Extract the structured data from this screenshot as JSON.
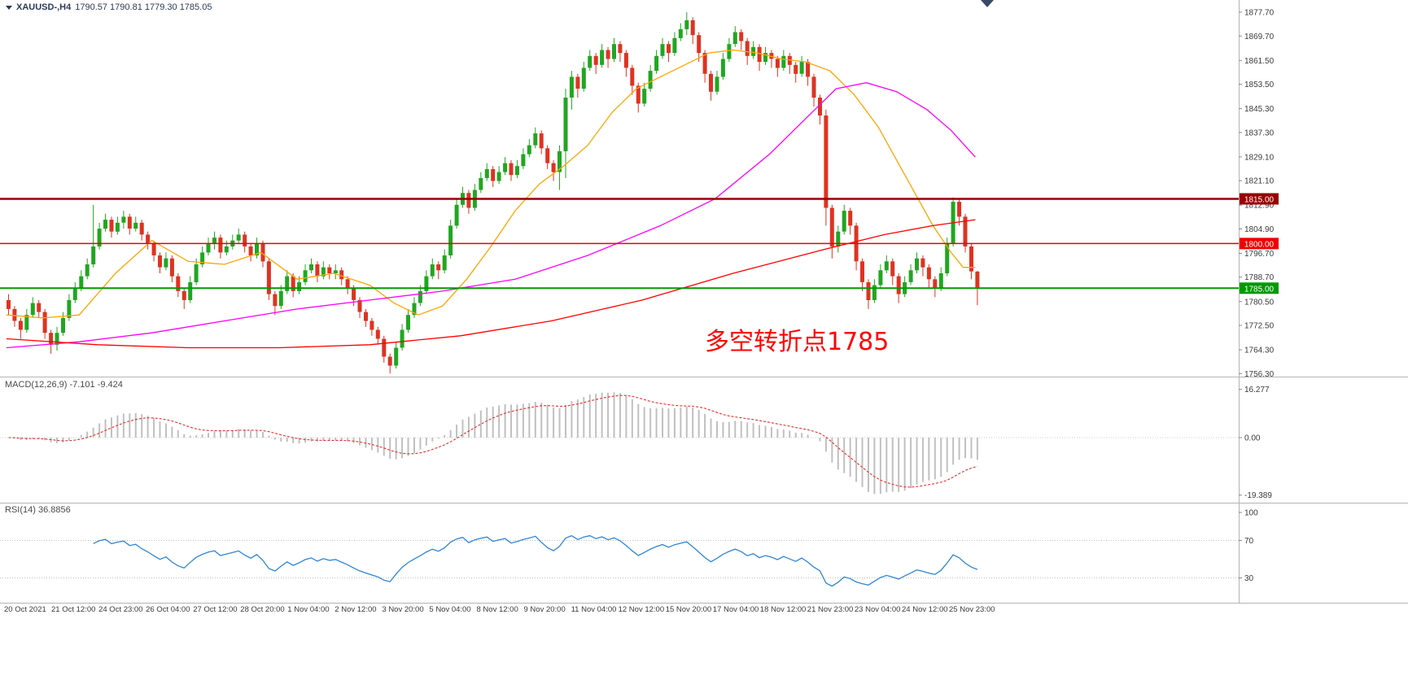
{
  "chart_data": {
    "type": "candlestick",
    "title": "XAUUSD-,H4",
    "ohlc_display": "1790.57 1790.81 1779.30 1785.05",
    "timeframe": "H4",
    "price_axis": {
      "ticks": [
        "1877.70",
        "1869.70",
        "1861.50",
        "1853.50",
        "1845.30",
        "1837.30",
        "1829.10",
        "1821.10",
        "1812.90",
        "1804.90",
        "1796.70",
        "1788.70",
        "1780.50",
        "1772.50",
        "1764.30",
        "1756.30"
      ]
    },
    "time_axis": {
      "labels": [
        "20 Oct 2021",
        "21 Oct 12:00",
        "24 Oct 23:00",
        "26 Oct 04:00",
        "27 Oct 12:00",
        "28 Oct 20:00",
        "1 Nov 04:00",
        "2 Nov 12:00",
        "3 Nov 20:00",
        "5 Nov 04:00",
        "8 Nov 12:00",
        "9 Nov 20:00",
        "11 Nov 04:00",
        "12 Nov 12:00",
        "15 Nov 20:00",
        "17 Nov 04:00",
        "18 Nov 12:00",
        "21 Nov 23:00",
        "23 Nov 04:00",
        "24 Nov 12:00",
        "25 Nov 23:00"
      ]
    },
    "hlines": [
      {
        "price": 1815.0,
        "label": "1815.00",
        "color": "#990000",
        "width": 2.5
      },
      {
        "price": 1800.0,
        "label": "1800.00",
        "color": "#ee0000",
        "width": 1.5
      },
      {
        "price": 1785.0,
        "label": "1785.00",
        "color": "#009900",
        "width": 2
      }
    ],
    "annotation": {
      "text": "多空转折点1785",
      "color": "#ff0000"
    },
    "colors": {
      "bull": "#21a621",
      "bear": "#dd3322",
      "ma_fast": "#ffa500",
      "ma_mid": "#ff00ff",
      "ma_slow": "#ff0000",
      "macd_hist": "#c0c0c0",
      "macd_signal": "#e03030",
      "rsi": "#2f86d4",
      "axis_text": "#3a3a3a",
      "separator": "#b4b4b4"
    },
    "candles": [
      [
        1781,
        1783,
        1776,
        1778
      ],
      [
        1778,
        1779,
        1772,
        1774
      ],
      [
        1774,
        1775,
        1768,
        1771
      ],
      [
        1771,
        1778,
        1770,
        1776
      ],
      [
        1776,
        1782,
        1775,
        1780
      ],
      [
        1780,
        1781,
        1775,
        1777
      ],
      [
        1777,
        1778,
        1768,
        1770
      ],
      [
        1770,
        1771,
        1763,
        1766
      ],
      [
        1766,
        1772,
        1764,
        1770
      ],
      [
        1770,
        1777,
        1769,
        1775
      ],
      [
        1775,
        1783,
        1774,
        1781
      ],
      [
        1781,
        1787,
        1780,
        1785
      ],
      [
        1785,
        1791,
        1784,
        1789
      ],
      [
        1789,
        1795,
        1788,
        1793
      ],
      [
        1793,
        1813,
        1792,
        1799
      ],
      [
        1799,
        1807,
        1798,
        1805
      ],
      [
        1805,
        1810,
        1804,
        1808
      ],
      [
        1808,
        1809,
        1802,
        1804
      ],
      [
        1804,
        1809,
        1803,
        1807
      ],
      [
        1807,
        1811,
        1805,
        1809
      ],
      [
        1809,
        1810,
        1803,
        1805
      ],
      [
        1805,
        1809,
        1804,
        1807
      ],
      [
        1807,
        1808,
        1801,
        1803
      ],
      [
        1803,
        1804,
        1798,
        1800
      ],
      [
        1800,
        1801,
        1794,
        1796
      ],
      [
        1796,
        1797,
        1790,
        1792
      ],
      [
        1792,
        1797,
        1791,
        1795
      ],
      [
        1795,
        1796,
        1787,
        1789
      ],
      [
        1789,
        1790,
        1782,
        1784
      ],
      [
        1784,
        1785,
        1778,
        1781
      ],
      [
        1781,
        1789,
        1780,
        1787
      ],
      [
        1787,
        1795,
        1786,
        1793
      ],
      [
        1793,
        1799,
        1792,
        1797
      ],
      [
        1797,
        1802,
        1796,
        1800
      ],
      [
        1800,
        1804,
        1798,
        1802
      ],
      [
        1802,
        1803,
        1795,
        1797
      ],
      [
        1797,
        1801,
        1796,
        1799
      ],
      [
        1799,
        1803,
        1798,
        1801
      ],
      [
        1801,
        1805,
        1800,
        1803
      ],
      [
        1803,
        1804,
        1797,
        1799
      ],
      [
        1799,
        1800,
        1794,
        1796
      ],
      [
        1796,
        1802,
        1795,
        1800
      ],
      [
        1800,
        1801,
        1792,
        1794
      ],
      [
        1794,
        1795,
        1781,
        1783
      ],
      [
        1783,
        1784,
        1776,
        1779
      ],
      [
        1779,
        1786,
        1778,
        1784
      ],
      [
        1784,
        1791,
        1783,
        1789
      ],
      [
        1789,
        1790,
        1782,
        1784
      ],
      [
        1784,
        1789,
        1783,
        1787
      ],
      [
        1787,
        1793,
        1786,
        1791
      ],
      [
        1791,
        1795,
        1790,
        1793
      ],
      [
        1793,
        1794,
        1787,
        1789
      ],
      [
        1789,
        1794,
        1788,
        1792
      ],
      [
        1792,
        1793,
        1788,
        1790
      ],
      [
        1790,
        1793,
        1788,
        1791
      ],
      [
        1791,
        1792,
        1786,
        1788
      ],
      [
        1788,
        1789,
        1783,
        1785
      ],
      [
        1785,
        1786,
        1779,
        1781
      ],
      [
        1781,
        1782,
        1775,
        1777
      ],
      [
        1777,
        1778,
        1772,
        1774
      ],
      [
        1774,
        1775,
        1769,
        1771
      ],
      [
        1771,
        1772,
        1766,
        1768
      ],
      [
        1768,
        1769,
        1760,
        1762
      ],
      [
        1762,
        1763,
        1756.3,
        1759
      ],
      [
        1759,
        1767,
        1758,
        1765
      ],
      [
        1765,
        1773,
        1764,
        1771
      ],
      [
        1771,
        1778,
        1770,
        1776
      ],
      [
        1776,
        1782,
        1775,
        1780
      ],
      [
        1780,
        1786,
        1779,
        1784
      ],
      [
        1784,
        1791,
        1783,
        1789
      ],
      [
        1789,
        1795,
        1788,
        1793
      ],
      [
        1793,
        1794,
        1788,
        1791
      ],
      [
        1791,
        1798,
        1790,
        1796
      ],
      [
        1796,
        1808,
        1795,
        1806
      ],
      [
        1806,
        1815,
        1805,
        1813
      ],
      [
        1813,
        1819,
        1812,
        1817
      ],
      [
        1817,
        1818,
        1810,
        1812
      ],
      [
        1812,
        1820,
        1811,
        1818
      ],
      [
        1818,
        1824,
        1817,
        1822
      ],
      [
        1822,
        1827,
        1821,
        1825
      ],
      [
        1825,
        1826,
        1819,
        1821
      ],
      [
        1821,
        1826,
        1820,
        1824
      ],
      [
        1824,
        1829,
        1823,
        1827
      ],
      [
        1827,
        1828,
        1821,
        1823
      ],
      [
        1823,
        1828,
        1822,
        1826
      ],
      [
        1826,
        1832,
        1825,
        1830
      ],
      [
        1830,
        1835,
        1829,
        1833
      ],
      [
        1833,
        1839,
        1832,
        1837
      ],
      [
        1837,
        1838,
        1830,
        1832
      ],
      [
        1832,
        1833,
        1825,
        1827
      ],
      [
        1827,
        1828,
        1821,
        1824
      ],
      [
        1824,
        1833,
        1818,
        1831
      ],
      [
        1831,
        1852,
        1822,
        1849
      ],
      [
        1849,
        1858,
        1845,
        1856
      ],
      [
        1856,
        1857,
        1849,
        1852
      ],
      [
        1852,
        1861,
        1851,
        1859
      ],
      [
        1859,
        1865,
        1858,
        1863
      ],
      [
        1863,
        1864,
        1857,
        1860
      ],
      [
        1860,
        1867,
        1859,
        1865
      ],
      [
        1865,
        1866,
        1859,
        1862
      ],
      [
        1862,
        1869,
        1861,
        1867
      ],
      [
        1867,
        1868,
        1861,
        1864
      ],
      [
        1864,
        1865,
        1856,
        1859
      ],
      [
        1859,
        1860,
        1850,
        1853
      ],
      [
        1853,
        1854,
        1844,
        1847
      ],
      [
        1847,
        1854,
        1846,
        1852
      ],
      [
        1852,
        1860,
        1851,
        1858
      ],
      [
        1858,
        1865,
        1857,
        1863
      ],
      [
        1863,
        1869,
        1862,
        1867
      ],
      [
        1867,
        1868,
        1861,
        1864
      ],
      [
        1864,
        1871,
        1863,
        1869
      ],
      [
        1869,
        1874,
        1868,
        1872
      ],
      [
        1872,
        1877.7,
        1870,
        1875
      ],
      [
        1875,
        1876,
        1867,
        1870
      ],
      [
        1870,
        1871,
        1861,
        1864
      ],
      [
        1864,
        1865,
        1854,
        1857
      ],
      [
        1857,
        1858,
        1848,
        1851
      ],
      [
        1851,
        1858,
        1850,
        1856
      ],
      [
        1856,
        1864,
        1855,
        1862
      ],
      [
        1862,
        1869,
        1861,
        1867
      ],
      [
        1867,
        1873,
        1866,
        1871
      ],
      [
        1871,
        1872,
        1865,
        1868
      ],
      [
        1868,
        1869,
        1860,
        1863
      ],
      [
        1863,
        1868,
        1862,
        1866
      ],
      [
        1866,
        1867,
        1858,
        1861
      ],
      [
        1861,
        1866,
        1860,
        1864
      ],
      [
        1864,
        1865,
        1859,
        1862
      ],
      [
        1862,
        1863,
        1856,
        1859
      ],
      [
        1859,
        1865,
        1858,
        1863
      ],
      [
        1863,
        1864,
        1857,
        1860
      ],
      [
        1860,
        1861,
        1854,
        1857
      ],
      [
        1857,
        1863,
        1856,
        1861
      ],
      [
        1861,
        1862,
        1853,
        1856
      ],
      [
        1856,
        1857,
        1846,
        1849
      ],
      [
        1849,
        1850,
        1840,
        1843
      ],
      [
        1843,
        1845,
        1806,
        1812
      ],
      [
        1812,
        1813,
        1795,
        1799
      ],
      [
        1799,
        1806,
        1797,
        1804
      ],
      [
        1804,
        1813,
        1803,
        1811
      ],
      [
        1811,
        1812,
        1803,
        1806
      ],
      [
        1806,
        1807,
        1791,
        1794
      ],
      [
        1794,
        1795,
        1784,
        1787
      ],
      [
        1787,
        1788,
        1778,
        1781
      ],
      [
        1781,
        1788,
        1780,
        1786
      ],
      [
        1786,
        1793,
        1785,
        1791
      ],
      [
        1791,
        1796,
        1790,
        1794
      ],
      [
        1794,
        1795,
        1786,
        1789
      ],
      [
        1789,
        1790,
        1780,
        1783
      ],
      [
        1783,
        1789,
        1782,
        1787
      ],
      [
        1787,
        1793,
        1786,
        1791
      ],
      [
        1791,
        1797,
        1790,
        1795
      ],
      [
        1795,
        1796,
        1789,
        1792
      ],
      [
        1792,
        1793,
        1785,
        1788
      ],
      [
        1788,
        1789,
        1782,
        1785
      ],
      [
        1785,
        1792,
        1784,
        1790
      ],
      [
        1790,
        1802,
        1789,
        1800
      ],
      [
        1800,
        1815.5,
        1799,
        1814
      ],
      [
        1814,
        1815,
        1806,
        1809
      ],
      [
        1809,
        1810,
        1797,
        1799
      ],
      [
        1799,
        1800,
        1788,
        1790.6
      ],
      [
        1790.57,
        1790.81,
        1779.3,
        1785.05
      ]
    ],
    "ma_lines": [
      {
        "name": "ma-fast-orange",
        "color": "#ffa500",
        "points": [
          [
            0,
            1776
          ],
          [
            6,
            1775
          ],
          [
            12,
            1776
          ],
          [
            18,
            1790
          ],
          [
            24,
            1801
          ],
          [
            30,
            1794
          ],
          [
            36,
            1793
          ],
          [
            42,
            1797
          ],
          [
            48,
            1788
          ],
          [
            54,
            1790
          ],
          [
            60,
            1786
          ],
          [
            64,
            1780
          ],
          [
            68,
            1776
          ],
          [
            72,
            1779
          ],
          [
            76,
            1788
          ],
          [
            80,
            1799
          ],
          [
            84,
            1811
          ],
          [
            88,
            1820
          ],
          [
            92,
            1826
          ],
          [
            96,
            1833
          ],
          [
            100,
            1844
          ],
          [
            104,
            1852
          ],
          [
            108,
            1856
          ],
          [
            112,
            1860
          ],
          [
            116,
            1864
          ],
          [
            120,
            1865
          ],
          [
            124,
            1864
          ],
          [
            128,
            1862
          ],
          [
            132,
            1861
          ],
          [
            136,
            1858
          ],
          [
            140,
            1850
          ],
          [
            144,
            1839
          ],
          [
            147,
            1828
          ],
          [
            150,
            1817
          ],
          [
            153,
            1806
          ],
          [
            156,
            1797
          ],
          [
            158,
            1792
          ],
          [
            160,
            1792
          ]
        ]
      },
      {
        "name": "ma-mid-magenta",
        "color": "#ff00ff",
        "points": [
          [
            0,
            1765
          ],
          [
            12,
            1767
          ],
          [
            24,
            1770
          ],
          [
            36,
            1774
          ],
          [
            48,
            1778
          ],
          [
            60,
            1781
          ],
          [
            72,
            1784
          ],
          [
            84,
            1788
          ],
          [
            96,
            1796
          ],
          [
            108,
            1806
          ],
          [
            117,
            1815
          ],
          [
            126,
            1830
          ],
          [
            132,
            1842
          ],
          [
            137,
            1852
          ],
          [
            142,
            1854
          ],
          [
            147,
            1851
          ],
          [
            152,
            1845
          ],
          [
            156,
            1838
          ],
          [
            160,
            1829
          ]
        ]
      },
      {
        "name": "ma-slow-red",
        "color": "#ff0000",
        "points": [
          [
            0,
            1768
          ],
          [
            15,
            1766
          ],
          [
            30,
            1765
          ],
          [
            45,
            1765
          ],
          [
            60,
            1766
          ],
          [
            75,
            1769
          ],
          [
            90,
            1774
          ],
          [
            105,
            1781
          ],
          [
            120,
            1790
          ],
          [
            135,
            1798
          ],
          [
            145,
            1803
          ],
          [
            153,
            1806
          ],
          [
            160,
            1808
          ]
        ]
      }
    ],
    "macd": {
      "label": "MACD(12,26,9) -7.101 -9.424",
      "fast": 12,
      "slow": 26,
      "signal": 9,
      "value": -7.101,
      "signal_value": -9.424,
      "axis_ticks": [
        {
          "v": 16.277,
          "label": "16.277"
        },
        {
          "v": 0,
          "label": "0.00"
        },
        {
          "v": -19.389,
          "label": "-19.389"
        }
      ]
    },
    "rsi": {
      "label": "RSI(14) 36.8856",
      "period": 14,
      "value": 36.8856,
      "levels": [
        70,
        30
      ],
      "axis_ticks": [
        {
          "v": 100,
          "label": "100"
        },
        {
          "v": 70,
          "label": "70"
        },
        {
          "v": 30,
          "label": "30"
        }
      ]
    }
  }
}
